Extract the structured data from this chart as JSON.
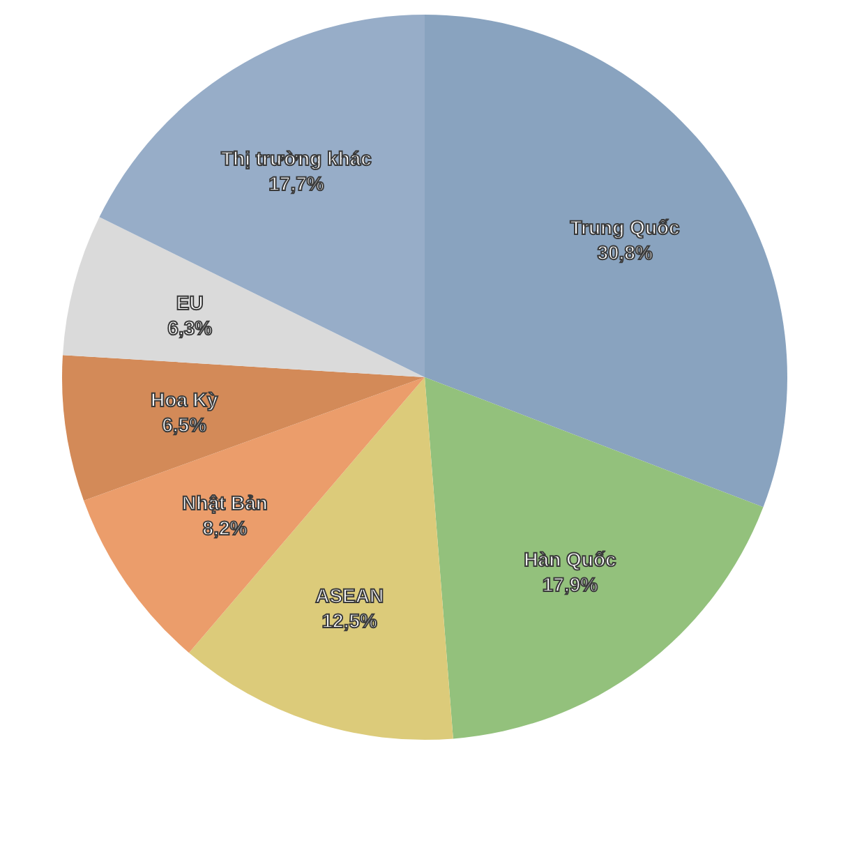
{
  "chart_data": {
    "type": "pie",
    "categories": [
      "Trung Quốc",
      "Hàn Quốc",
      "ASEAN",
      "Nhật Bản",
      "Hoa Kỳ",
      "EU",
      "Thị trường khác"
    ],
    "values": [
      30.8,
      17.9,
      12.5,
      8.2,
      6.5,
      6.3,
      17.7
    ],
    "colors": [
      "#89a3bf",
      "#93c17c",
      "#dccb7a",
      "#eb9d6b",
      "#d38a58",
      "#dadada",
      "#97adc8"
    ],
    "value_labels": [
      "30,8%",
      "17,9%",
      "12,5%",
      "8,2%",
      "6,5%",
      "6,3%",
      "17,7%"
    ]
  }
}
